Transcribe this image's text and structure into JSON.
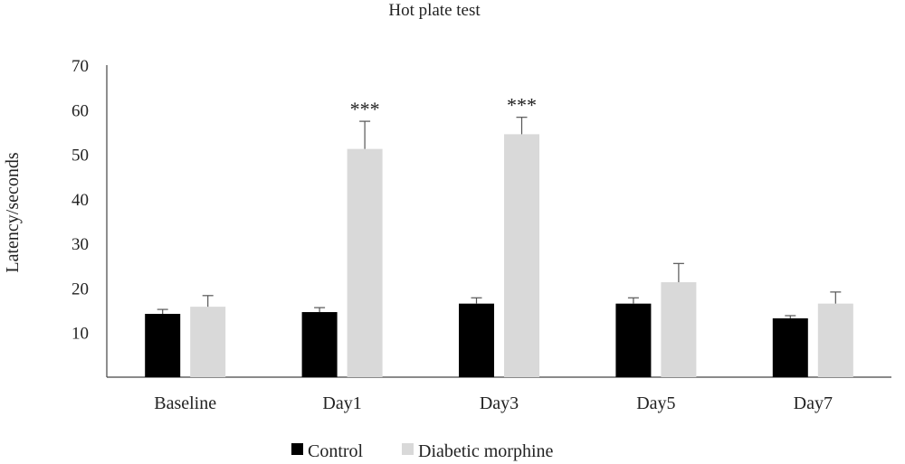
{
  "chart_data": {
    "type": "bar",
    "title": "Hot plate test",
    "xlabel": "",
    "ylabel": "Latency/seconds",
    "ylim": [
      0,
      70
    ],
    "yticks": [
      10,
      20,
      30,
      40,
      50,
      60,
      70
    ],
    "grid": false,
    "legend_position": "bottom",
    "categories": [
      "Baseline",
      "Day1",
      "Day3",
      "Day5",
      "Day7"
    ],
    "series": [
      {
        "name": "Control",
        "color": "#000000",
        "values": [
          14.2,
          14.6,
          16.5,
          16.5,
          13.2
        ],
        "errors": [
          1.0,
          1.0,
          1.3,
          1.3,
          0.6
        ]
      },
      {
        "name": "Diabetic morphine",
        "color": "#d9d9d9",
        "values": [
          15.8,
          51.2,
          54.5,
          21.3,
          16.5
        ],
        "errors": [
          2.5,
          6.2,
          3.8,
          4.2,
          2.6
        ]
      }
    ],
    "annotations": [
      {
        "category": "Day1",
        "series": "Diabetic morphine",
        "text": "***"
      },
      {
        "category": "Day3",
        "series": "Diabetic morphine",
        "text": "***"
      }
    ]
  }
}
